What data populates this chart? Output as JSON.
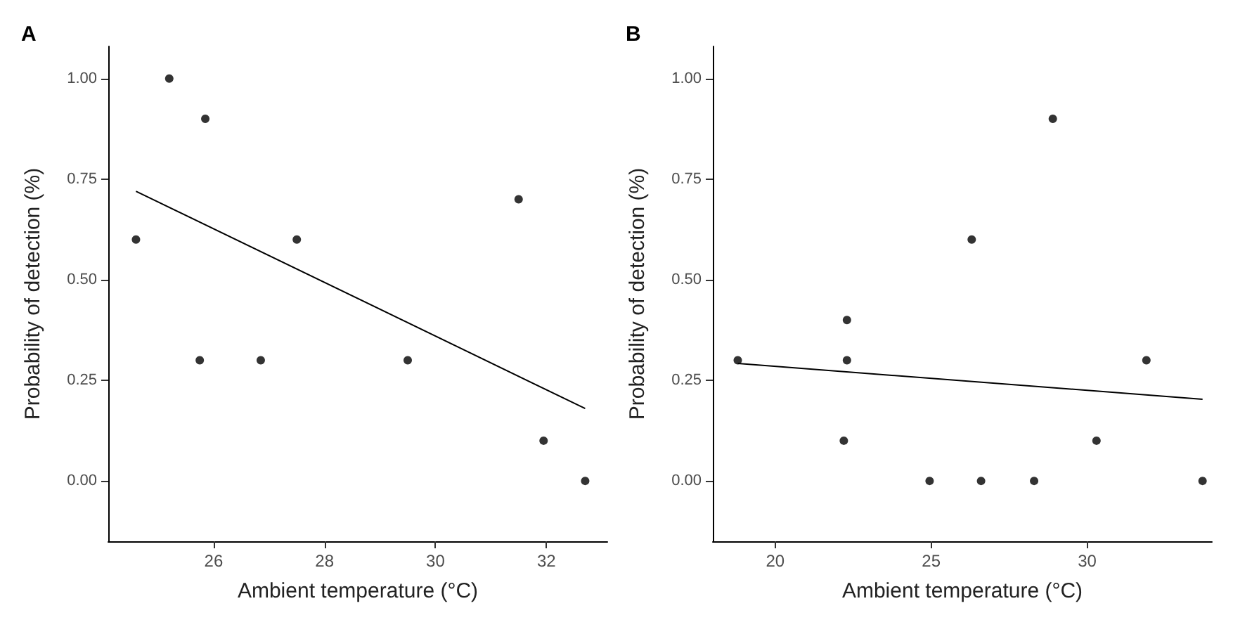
{
  "chart_data": [
    {
      "type": "scatter",
      "title": "A",
      "xlabel": "Ambient temperature (°C)",
      "ylabel": "Probability of detection (%)",
      "xlim": [
        24.1,
        33.1
      ],
      "ylim": [
        -0.15,
        1.08
      ],
      "xticks": [
        26,
        28,
        30,
        32
      ],
      "yticks": [
        {
          "value": 0,
          "label": "0.00"
        },
        {
          "value": 0.25,
          "label": "0.25"
        },
        {
          "value": 0.5,
          "label": "0.50"
        },
        {
          "value": 0.75,
          "label": "0.75"
        },
        {
          "value": 1,
          "label": "1.00"
        }
      ],
      "grid": false,
      "marker": "circle",
      "series": [
        {
          "type": "scatter",
          "color": "#000000",
          "x": [
            24.6,
            25.2,
            25.85,
            25.75,
            26.85,
            27.5,
            29.5,
            31.5,
            31.95,
            32.7
          ],
          "values": [
            0.6,
            1.0,
            0.9,
            0.3,
            0.3,
            0.6,
            0.3,
            0.7,
            0.1,
            0.0
          ]
        },
        {
          "type": "line",
          "color": "#000000",
          "marker": "none",
          "x": [
            24.6,
            32.7
          ],
          "values": [
            0.72,
            0.18
          ]
        }
      ]
    },
    {
      "type": "scatter",
      "title": "B",
      "xlabel": "Ambient temperature (°C)",
      "ylabel": "Probability of detection (%)",
      "xlim": [
        18,
        34
      ],
      "ylim": [
        -0.15,
        1.08
      ],
      "xticks": [
        20,
        25,
        30
      ],
      "yticks": [
        {
          "value": 0,
          "label": "0.00"
        },
        {
          "value": 0.25,
          "label": "0.25"
        },
        {
          "value": 0.5,
          "label": "0.50"
        },
        {
          "value": 0.75,
          "label": "0.75"
        },
        {
          "value": 1,
          "label": "1.00"
        }
      ],
      "grid": false,
      "marker": "circle",
      "series": [
        {
          "type": "scatter",
          "color": "#000000",
          "x": [
            18.8,
            22.3,
            22.3,
            22.2,
            24.95,
            26.3,
            26.6,
            28.3,
            28.9,
            30.3,
            31.9,
            33.7
          ],
          "values": [
            0.3,
            0.4,
            0.3,
            0.1,
            0,
            0.6,
            0,
            0,
            0.9,
            0.1,
            0.3,
            0
          ]
        },
        {
          "type": "line",
          "color": "#000000",
          "marker": "none",
          "x": [
            18.8,
            33.7
          ],
          "values": [
            0.292,
            0.203
          ]
        }
      ]
    }
  ]
}
